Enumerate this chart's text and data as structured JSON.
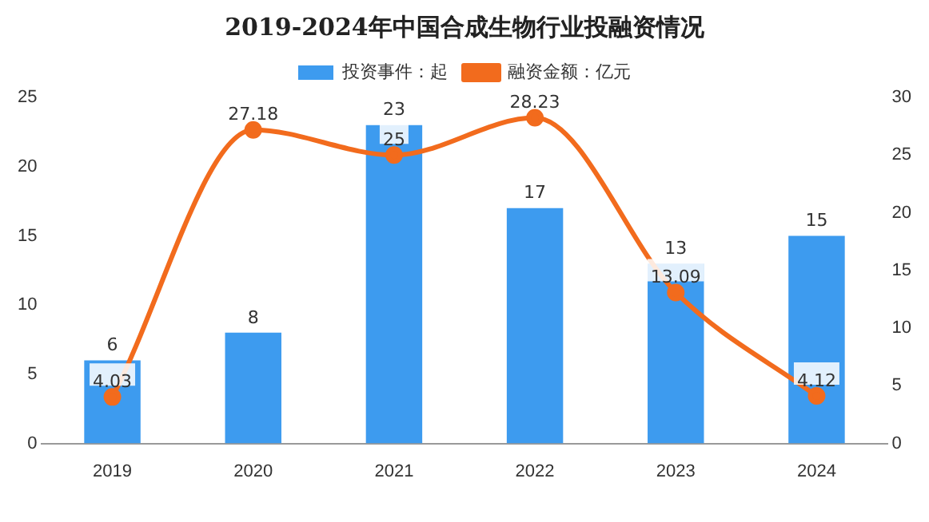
{
  "chart_data": {
    "type": "bar",
    "title": "2019-2024年中国合成生物行业投融资情况",
    "categories": [
      "2019",
      "2020",
      "2021",
      "2022",
      "2023",
      "2024"
    ],
    "series": [
      {
        "name": "投资事件：起",
        "color": "#3d9bef",
        "values": [
          6,
          8,
          23,
          17,
          13,
          15
        ]
      },
      {
        "name": "融资金额：亿元",
        "type": "line",
        "axis": "y2",
        "color": "#f26b1d",
        "values": [
          4.03,
          27.18,
          25,
          28.23,
          13.09,
          4.12
        ]
      }
    ],
    "ylim": [
      0,
      25
    ],
    "yticks": [
      0,
      5,
      10,
      15,
      20,
      25
    ],
    "y2lim": [
      0,
      30
    ],
    "y2ticks": [
      0,
      5,
      10,
      15,
      20,
      25,
      30
    ],
    "grid": false,
    "legend": "top",
    "marker": "circle",
    "line_style": "solid",
    "data_labels": true
  }
}
